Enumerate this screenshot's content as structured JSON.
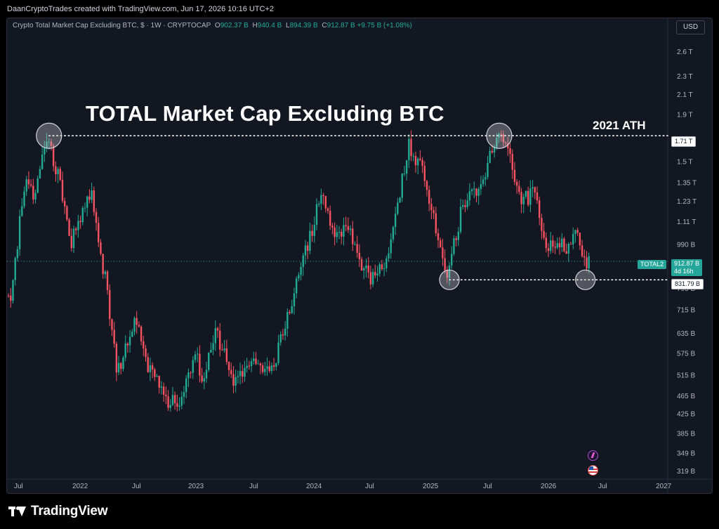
{
  "header": {
    "caption": "DaanCryptoTrades created with TradingView.com, Jun 17, 2026 10:16 UTC+2"
  },
  "legend": {
    "symbol_text": "Crypto Total Market Cap Excluding BTC, $ · 1W · CRYPTOCAP",
    "open_key": "O",
    "open": "902.37 B",
    "high_key": "H",
    "high": "940.4 B",
    "low_key": "L",
    "low": "894.39 B",
    "close_key": "C",
    "close": "912.87 B",
    "change": "+9.75 B (+1.08%)"
  },
  "currency": "USD",
  "brand": {
    "name": "TradingView"
  },
  "icons": {
    "flash": "flash-icon",
    "flag": "us-flag-icon",
    "logo": "tradingview-logo-icon"
  },
  "colors": {
    "up": "#22ab94",
    "down": "#f7525f",
    "background": "#131722",
    "accent": "#26a69a"
  },
  "chart_data": {
    "type": "candlestick",
    "title": "TOTAL Market Cap Excluding BTC",
    "series_name": "TOTAL2",
    "timeframe": "1W",
    "x_ticks": [
      "Jul",
      "2022",
      "Jul",
      "2023",
      "Jul",
      "2024",
      "Jul",
      "2025",
      "Jul",
      "2026",
      "Jul",
      "2027"
    ],
    "y_scale": "log",
    "y_ticks": [
      {
        "label": "2.6 T",
        "value": 2600
      },
      {
        "label": "2.3 T",
        "value": 2300
      },
      {
        "label": "2.1 T",
        "value": 2100
      },
      {
        "label": "1.9 T",
        "value": 1900
      },
      {
        "label": "1.5 T",
        "value": 1500
      },
      {
        "label": "1.35 T",
        "value": 1350
      },
      {
        "label": "1.23 T",
        "value": 1230
      },
      {
        "label": "1.11 T",
        "value": 1110
      },
      {
        "label": "990 B",
        "value": 990
      },
      {
        "label": "795 B",
        "value": 795
      },
      {
        "label": "715 B",
        "value": 715
      },
      {
        "label": "635 B",
        "value": 635
      },
      {
        "label": "575 B",
        "value": 575
      },
      {
        "label": "515 B",
        "value": 515
      },
      {
        "label": "465 B",
        "value": 465
      },
      {
        "label": "425 B",
        "value": 425
      },
      {
        "label": "385 B",
        "value": 385
      },
      {
        "label": "349 B",
        "value": 349
      },
      {
        "label": "319 B",
        "value": 319
      }
    ],
    "ylim": [
      310,
      2800
    ],
    "price_path_billions": [
      {
        "date": "2021-06-01",
        "price": 1010
      },
      {
        "date": "2021-06-20",
        "price": 740
      },
      {
        "date": "2021-07-20",
        "price": 760
      },
      {
        "date": "2021-09-05",
        "price": 1450
      },
      {
        "date": "2021-09-25",
        "price": 1250
      },
      {
        "date": "2021-11-09",
        "price": 1710
      },
      {
        "date": "2021-12-10",
        "price": 1450
      },
      {
        "date": "2022-01-20",
        "price": 1000
      },
      {
        "date": "2022-03-28",
        "price": 1270
      },
      {
        "date": "2022-05-12",
        "price": 820
      },
      {
        "date": "2022-06-18",
        "price": 520
      },
      {
        "date": "2022-08-14",
        "price": 680
      },
      {
        "date": "2022-09-20",
        "price": 540
      },
      {
        "date": "2022-11-09",
        "price": 460
      },
      {
        "date": "2022-12-25",
        "price": 440
      },
      {
        "date": "2023-02-16",
        "price": 590
      },
      {
        "date": "2023-03-10",
        "price": 500
      },
      {
        "date": "2023-04-18",
        "price": 640
      },
      {
        "date": "2023-06-12",
        "price": 505
      },
      {
        "date": "2023-08-10",
        "price": 540
      },
      {
        "date": "2023-10-15",
        "price": 530
      },
      {
        "date": "2023-12-20",
        "price": 780
      },
      {
        "date": "2024-03-12",
        "price": 1270
      },
      {
        "date": "2024-04-20",
        "price": 1060
      },
      {
        "date": "2024-06-01",
        "price": 1080
      },
      {
        "date": "2024-08-05",
        "price": 840
      },
      {
        "date": "2024-09-30",
        "price": 880
      },
      {
        "date": "2024-12-10",
        "price": 1650
      },
      {
        "date": "2025-01-20",
        "price": 1450
      },
      {
        "date": "2025-04-08",
        "price": 850
      },
      {
        "date": "2025-05-25",
        "price": 1200
      },
      {
        "date": "2025-07-20",
        "price": 1300
      },
      {
        "date": "2025-09-10",
        "price": 1710
      },
      {
        "date": "2025-10-10",
        "price": 1600
      },
      {
        "date": "2025-11-20",
        "price": 1250
      },
      {
        "date": "2026-01-10",
        "price": 1270
      },
      {
        "date": "2026-02-05",
        "price": 990
      },
      {
        "date": "2026-04-15",
        "price": 990
      },
      {
        "date": "2026-05-20",
        "price": 1050
      },
      {
        "date": "2026-06-05",
        "price": 880
      },
      {
        "date": "2026-06-17",
        "price": 912.87
      }
    ],
    "horizontal_lines": [
      {
        "label": "2021 ATH",
        "value_label": "1.71 T",
        "value": 1710
      },
      {
        "label": "",
        "value_label": "831.79 B",
        "value": 831.79
      }
    ],
    "markers": [
      {
        "date": "2021-11-09",
        "price": 1710
      },
      {
        "date": "2025-09-10",
        "price": 1710
      },
      {
        "date": "2025-04-08",
        "price": 831.79
      },
      {
        "date": "2026-06-05",
        "price": 831.79
      }
    ],
    "last_price": {
      "value_label": "912.87 B",
      "countdown": "4d 16h"
    },
    "ath_label": "2021 ATH",
    "grid": false
  }
}
